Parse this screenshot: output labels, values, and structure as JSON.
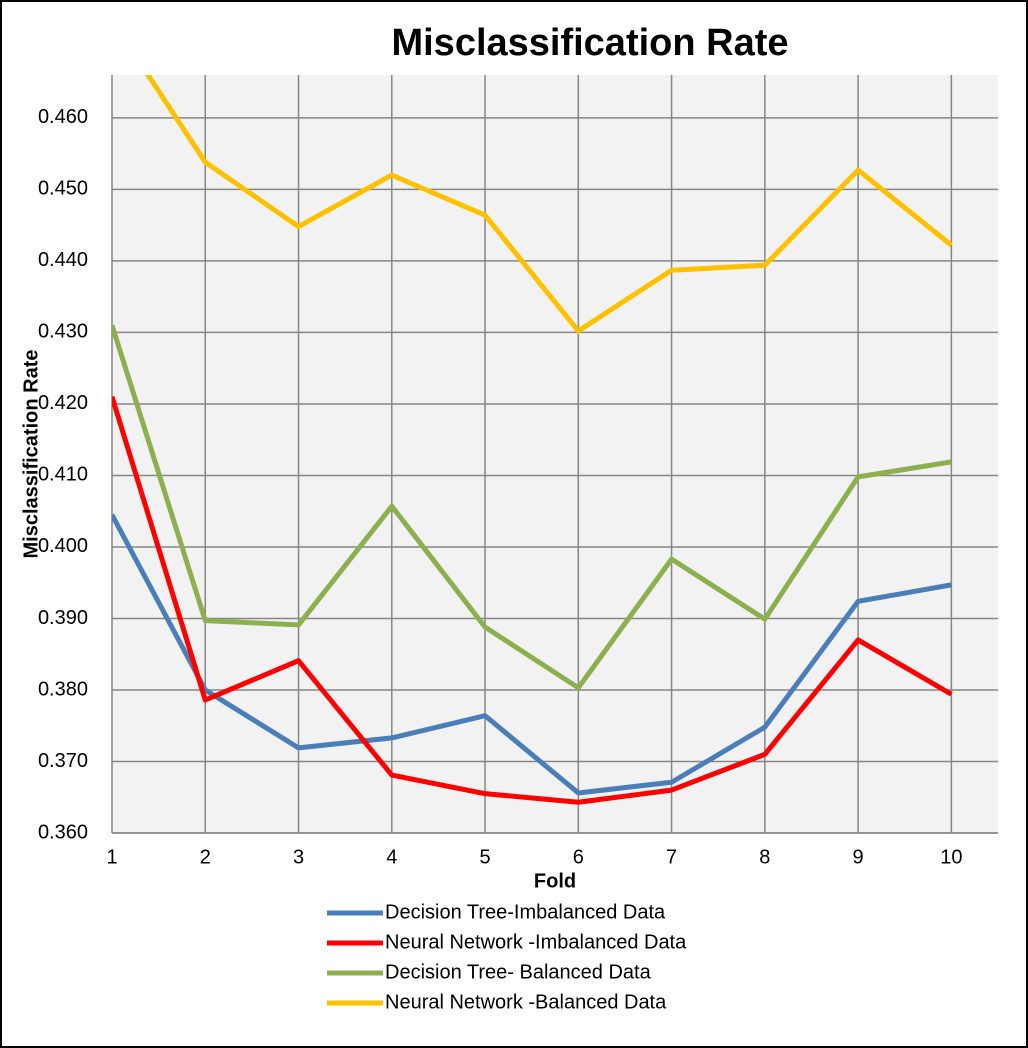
{
  "chart_data": {
    "type": "line",
    "title": "Misclassification Rate",
    "xlabel": "Fold",
    "ylabel": "Misclassification Rate",
    "x": [
      1,
      2,
      3,
      4,
      5,
      6,
      7,
      8,
      9,
      10
    ],
    "xlim": [
      1,
      10.5
    ],
    "xticks": [
      1,
      2,
      3,
      4,
      5,
      6,
      7,
      8,
      9,
      10
    ],
    "ylim": [
      0.36,
      0.466
    ],
    "yticks": [
      {
        "value": 0.36,
        "label": "0.360"
      },
      {
        "value": 0.37,
        "label": "0.370"
      },
      {
        "value": 0.38,
        "label": "0.380"
      },
      {
        "value": 0.39,
        "label": "0.390"
      },
      {
        "value": 0.4,
        "label": "0.400"
      },
      {
        "value": 0.41,
        "label": "0.410"
      },
      {
        "value": 0.42,
        "label": "0.420"
      },
      {
        "value": 0.43,
        "label": "0.430"
      },
      {
        "value": 0.44,
        "label": "0.440"
      },
      {
        "value": 0.45,
        "label": "0.450"
      },
      {
        "value": 0.46,
        "label": "0.460"
      }
    ],
    "grid": true,
    "series": [
      {
        "name": "Decision Tree-Imbalanced Data",
        "color": "#4a7ebb",
        "values": [
          0.4045,
          0.38,
          0.3719,
          0.3733,
          0.3764,
          0.3656,
          0.3671,
          0.3748,
          0.3924,
          0.3947
        ]
      },
      {
        "name": "Neural Network -Imbalanced Data",
        "color": "#ff0000",
        "values": [
          0.421,
          0.3786,
          0.3841,
          0.3681,
          0.3655,
          0.3643,
          0.366,
          0.371,
          0.387,
          0.3794
        ]
      },
      {
        "name": "Decision Tree- Balanced Data",
        "color": "#8cb04e",
        "values": [
          0.431,
          0.3897,
          0.3891,
          0.4057,
          0.3888,
          0.3803,
          0.3983,
          0.3899,
          0.4098,
          0.4119
        ]
      },
      {
        "name": "Neural Network -Balanced Data",
        "color": "#ffc000",
        "values": [
          0.4737,
          0.4538,
          0.4448,
          0.452,
          0.4464,
          0.4302,
          0.4387,
          0.4394,
          0.4527,
          0.4422
        ]
      }
    ]
  }
}
